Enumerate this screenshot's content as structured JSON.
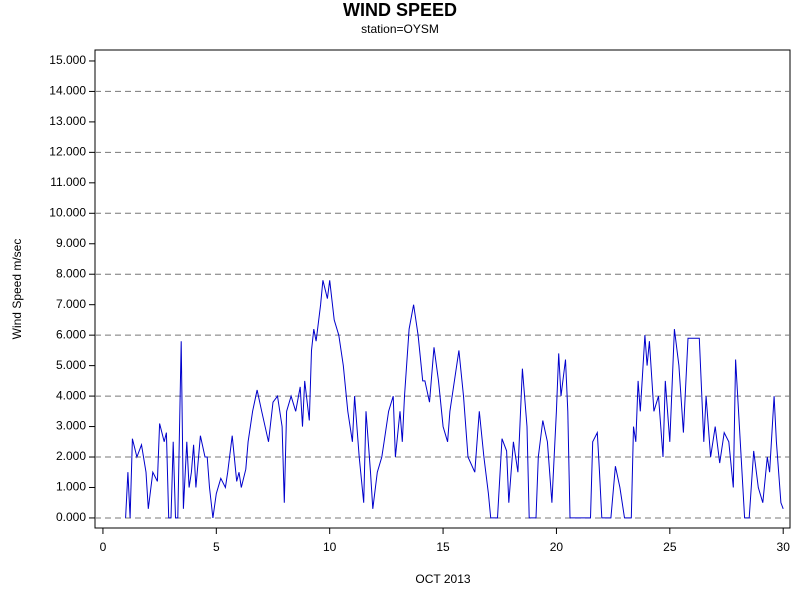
{
  "chart_data": {
    "type": "line",
    "title": "WIND SPEED",
    "subtitle": "station=OYSM",
    "xlabel": "OCT 2013",
    "ylabel": "Wind Speed m/sec",
    "xlim": [
      -0.35,
      30.3
    ],
    "ylim": [
      -0.33,
      15.36
    ],
    "xticks": [
      0,
      5,
      10,
      15,
      20,
      25,
      30
    ],
    "yticks": [
      {
        "value": 0,
        "label": "0.000"
      },
      {
        "value": 1,
        "label": "1.000"
      },
      {
        "value": 2,
        "label": "2.000"
      },
      {
        "value": 3,
        "label": "3.000"
      },
      {
        "value": 4,
        "label": "4.000"
      },
      {
        "value": 5,
        "label": "5.000"
      },
      {
        "value": 6,
        "label": "6.000"
      },
      {
        "value": 7,
        "label": "7.000"
      },
      {
        "value": 8,
        "label": "8.000"
      },
      {
        "value": 9,
        "label": "9.000"
      },
      {
        "value": 10,
        "label": "10.000"
      },
      {
        "value": 11,
        "label": "11.000"
      },
      {
        "value": 12,
        "label": "12.000"
      },
      {
        "value": 13,
        "label": "13.000"
      },
      {
        "value": 14,
        "label": "14.000"
      },
      {
        "value": 15,
        "label": "15.000"
      }
    ],
    "ygrid": [
      0,
      2,
      4,
      6,
      8,
      10,
      12,
      14
    ],
    "series": [
      {
        "name": "Wind Speed",
        "color": "#0000cc",
        "x": [
          1.0,
          1.1,
          1.2,
          1.3,
          1.5,
          1.7,
          1.9,
          2.0,
          2.2,
          2.4,
          2.5,
          2.7,
          2.8,
          2.9,
          3.0,
          3.1,
          3.2,
          3.3,
          3.45,
          3.55,
          3.7,
          3.8,
          3.9,
          4.0,
          4.1,
          4.3,
          4.5,
          4.6,
          4.7,
          4.85,
          5.0,
          5.2,
          5.4,
          5.5,
          5.7,
          5.9,
          6.0,
          6.1,
          6.3,
          6.4,
          6.6,
          6.8,
          7.0,
          7.3,
          7.5,
          7.7,
          7.9,
          8.0,
          8.1,
          8.3,
          8.5,
          8.7,
          8.8,
          8.9,
          9.1,
          9.2,
          9.3,
          9.4,
          9.6,
          9.7,
          9.9,
          10.0,
          10.2,
          10.4,
          10.6,
          10.8,
          11.0,
          11.1,
          11.3,
          11.5,
          11.6,
          11.8,
          11.9,
          12.1,
          12.3,
          12.4,
          12.6,
          12.8,
          12.9,
          13.1,
          13.2,
          13.3,
          13.5,
          13.7,
          13.9,
          14.1,
          14.2,
          14.4,
          14.6,
          14.8,
          15.0,
          15.2,
          15.3,
          15.5,
          15.7,
          15.9,
          16.1,
          16.4,
          16.6,
          16.8,
          17.0,
          17.1,
          17.4,
          17.6,
          17.8,
          17.9,
          18.1,
          18.3,
          18.5,
          18.7,
          18.8,
          19.1,
          19.2,
          19.4,
          19.6,
          19.8,
          20.0,
          20.1,
          20.2,
          20.4,
          20.5,
          20.6,
          21.5,
          21.6,
          21.8,
          21.9,
          22.0,
          22.4,
          22.6,
          22.8,
          23.0,
          23.3,
          23.4,
          23.5,
          23.6,
          23.7,
          23.9,
          24.0,
          24.1,
          24.3,
          24.5,
          24.7,
          24.8,
          25.0,
          25.2,
          25.4,
          25.6,
          25.8,
          26.3,
          26.5,
          26.6,
          26.8,
          27.0,
          27.2,
          27.4,
          27.6,
          27.8,
          27.9,
          28.3,
          28.5,
          28.7,
          28.9,
          29.1,
          29.3,
          29.4,
          29.6,
          29.7,
          29.9,
          30.0
        ],
        "values": [
          0,
          1.5,
          0,
          2.6,
          2.0,
          2.4,
          1.5,
          0.3,
          1.5,
          1.2,
          3.1,
          2.5,
          2.8,
          0,
          0,
          2.5,
          0,
          0,
          5.8,
          0.3,
          2.5,
          1.0,
          1.5,
          2.4,
          1.0,
          2.7,
          2.0,
          2.0,
          1.0,
          0,
          0.8,
          1.3,
          1.0,
          1.5,
          2.7,
          1.2,
          1.5,
          1.0,
          1.6,
          2.5,
          3.5,
          4.2,
          3.5,
          2.5,
          3.8,
          4.0,
          3.0,
          0.5,
          3.5,
          4.0,
          3.5,
          4.3,
          3.0,
          4.5,
          3.2,
          5.5,
          6.2,
          5.8,
          7.0,
          7.8,
          7.2,
          7.8,
          6.5,
          6.0,
          5.0,
          3.5,
          2.5,
          4.0,
          2.0,
          0.5,
          3.5,
          1.5,
          0.3,
          1.5,
          2.0,
          2.5,
          3.5,
          4.0,
          2.0,
          3.5,
          2.5,
          4.0,
          6.2,
          7.0,
          6.0,
          4.5,
          4.5,
          3.8,
          5.6,
          4.5,
          3.0,
          2.5,
          3.5,
          4.5,
          5.5,
          4.0,
          2.0,
          1.5,
          3.5,
          2.0,
          0.8,
          0,
          0,
          2.6,
          2.2,
          0.5,
          2.5,
          1.5,
          4.9,
          3.0,
          0,
          0,
          2.0,
          3.2,
          2.5,
          0.5,
          3.5,
          5.4,
          4.0,
          5.2,
          3.5,
          0,
          0,
          2.5,
          2.8,
          1.5,
          0,
          0,
          1.7,
          1.0,
          0,
          0,
          3.0,
          2.5,
          4.5,
          3.5,
          6.0,
          5.0,
          5.8,
          3.5,
          4.0,
          2.0,
          4.5,
          2.5,
          6.2,
          5.0,
          2.8,
          5.9,
          5.9,
          2.5,
          4.0,
          2.0,
          3.0,
          1.8,
          2.8,
          2.5,
          1.0,
          5.2,
          0,
          0,
          2.2,
          1.0,
          0.5,
          2.0,
          1.5,
          4.0,
          2.5,
          0.5,
          0.3
        ]
      }
    ]
  }
}
